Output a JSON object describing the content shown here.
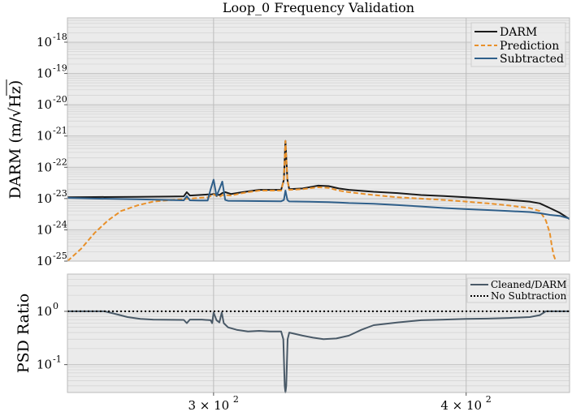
{
  "chart_data": [
    {
      "type": "line",
      "title": "Loop_0 Frequency Validation",
      "xlabel": "",
      "ylabel": "DARM (m/√Hz)",
      "ylabel_prefix": "DARM (m/",
      "ylabel_suffix": "Hz)",
      "yscale": "log",
      "xscale": "log",
      "xlim": [
        254,
        450
      ],
      "ylim": [
        1e-25,
        6e-18
      ],
      "y_ticks": [
        {
          "label": "10",
          "exp": "-18",
          "value": 1e-18
        },
        {
          "label": "10",
          "exp": "-19",
          "value": 1e-19
        },
        {
          "label": "10",
          "exp": "-20",
          "value": 1e-20
        },
        {
          "label": "10",
          "exp": "-21",
          "value": 1e-21
        },
        {
          "label": "10",
          "exp": "-22",
          "value": 1e-22
        },
        {
          "label": "10",
          "exp": "-23",
          "value": 1e-23
        },
        {
          "label": "10",
          "exp": "-24",
          "value": 1e-24
        },
        {
          "label": "10",
          "exp": "-25",
          "value": 1e-25
        }
      ],
      "grid": true,
      "legend_position": "top-right",
      "series": [
        {
          "name": "DARM",
          "color": "#1a1a1a",
          "style": "solid",
          "x": [
            254,
            262,
            275,
            285,
            290,
            291,
            292,
            295,
            298,
            299,
            300,
            301,
            302,
            303,
            304,
            306,
            310,
            316,
            324,
            325,
            325.6,
            326.3,
            327,
            332,
            338,
            342,
            346,
            350,
            360,
            370,
            380,
            390,
            400,
            410,
            420,
            430,
            435,
            440,
            445,
            450
          ],
          "y": [
            1.1e-23,
            1.12e-23,
            1.14e-23,
            1.16e-23,
            1.18e-23,
            1.6e-23,
            1.25e-23,
            1.3e-23,
            1.35e-23,
            1.35e-23,
            1.4e-23,
            1.35e-23,
            1.3e-23,
            1.5e-23,
            1.6e-23,
            1.4e-23,
            1.6e-23,
            1.9e-23,
            1.9e-23,
            4e-23,
            7e-22,
            4e-23,
            2e-23,
            2.1e-23,
            2.6e-23,
            2.5e-23,
            2.1e-23,
            1.9e-23,
            1.65e-23,
            1.5e-23,
            1.3e-23,
            1.2e-23,
            1.1e-23,
            1e-23,
            9e-24,
            8e-24,
            7e-24,
            5e-24,
            3.5e-24,
            2.2e-24
          ]
        },
        {
          "name": "Prediction",
          "color": "#e8902a",
          "style": "dashed",
          "x": [
            254,
            258,
            262,
            266,
            270,
            275,
            280,
            286,
            292,
            298,
            299,
            300,
            301,
            302,
            303,
            304,
            306,
            310,
            316,
            324,
            325,
            325.6,
            326.3,
            327,
            332,
            338,
            342,
            346,
            350,
            360,
            370,
            380,
            390,
            400,
            410,
            420,
            430,
            435,
            438,
            440,
            441,
            442,
            443
          ],
          "y": [
            1e-25,
            2.5e-25,
            8e-25,
            2e-24,
            4e-24,
            6e-24,
            8e-24,
            9e-24,
            1e-23,
            1.1e-23,
            1.2e-23,
            1.35e-23,
            1.2e-23,
            1.1e-23,
            1.3e-23,
            1.3e-23,
            1.25e-23,
            1.5e-23,
            1.8e-23,
            1.8e-23,
            4e-23,
            7e-22,
            4e-23,
            1.9e-23,
            2e-23,
            2.3e-23,
            2.2e-23,
            1.8e-23,
            1.6e-23,
            1.3e-23,
            1.1e-23,
            1e-23,
            9e-24,
            8e-24,
            7e-24,
            6e-24,
            5e-24,
            4e-24,
            2e-24,
            8e-25,
            3e-25,
            1.5e-25,
            1e-25
          ]
        },
        {
          "name": "Subtracted",
          "color": "#2f5f8a",
          "style": "solid",
          "x": [
            254,
            262,
            275,
            285,
            290,
            291,
            292,
            295,
            298,
            299,
            300,
            301,
            302,
            303,
            304,
            305,
            310,
            316,
            324,
            325,
            325.6,
            326.3,
            327,
            332,
            338,
            342,
            346,
            350,
            360,
            370,
            380,
            390,
            400,
            410,
            420,
            430,
            435,
            440,
            445,
            450
          ],
          "y": [
            1.05e-23,
            1e-23,
            9.5e-24,
            9e-24,
            8.8e-24,
            1.2e-23,
            8.8e-24,
            8.7e-24,
            8.7e-24,
            2e-23,
            4e-23,
            1.2e-23,
            2e-23,
            3.5e-23,
            9e-24,
            8.5e-24,
            8.4e-24,
            8.3e-24,
            8.2e-24,
            9e-24,
            1.8e-23,
            9e-24,
            8.1e-24,
            8e-24,
            7.8e-24,
            7.7e-24,
            7.5e-24,
            7.2e-24,
            6.8e-24,
            6.2e-24,
            5.6e-24,
            5e-24,
            4.6e-24,
            4.3e-24,
            4e-24,
            3.7e-24,
            3.4e-24,
            3e-24,
            2.8e-24,
            2.3e-24
          ]
        }
      ]
    },
    {
      "type": "line",
      "title": "",
      "xlabel": "",
      "ylabel": "PSD Ratio",
      "yscale": "log",
      "xscale": "log",
      "xlim": [
        254,
        450
      ],
      "ylim": [
        0.03,
        5
      ],
      "x_ticks": [
        {
          "label": "3 × 10",
          "exp": "2",
          "value": 300
        },
        {
          "label": "4 × 10",
          "exp": "2",
          "value": 400
        }
      ],
      "y_ticks": [
        {
          "label": "10",
          "exp": "0",
          "value": 1
        },
        {
          "label": "10",
          "exp": "-1",
          "value": 0.1
        }
      ],
      "grid": true,
      "legend_position": "top-right",
      "series": [
        {
          "name": "Cleaned/DARM",
          "color": "#4a5a68",
          "style": "solid",
          "x": [
            254,
            265,
            268,
            272,
            276,
            280,
            290,
            291,
            292,
            296,
            299,
            299.5,
            300,
            301,
            302,
            302.8,
            303.5,
            305,
            308,
            312,
            316,
            320,
            324,
            324.8,
            325.3,
            325.6,
            325.9,
            326.4,
            327,
            332,
            336,
            340,
            345,
            350,
            355,
            360,
            370,
            380,
            390,
            400,
            410,
            420,
            430,
            435,
            438,
            442,
            450
          ],
          "y": [
            1.0,
            1.0,
            0.9,
            0.78,
            0.72,
            0.7,
            0.69,
            0.6,
            0.7,
            0.7,
            0.68,
            0.6,
            0.95,
            0.68,
            0.62,
            0.95,
            0.6,
            0.5,
            0.45,
            0.42,
            0.43,
            0.42,
            0.42,
            0.3,
            0.04,
            0.03,
            0.04,
            0.3,
            0.4,
            0.35,
            0.32,
            0.3,
            0.31,
            0.35,
            0.45,
            0.55,
            0.62,
            0.68,
            0.7,
            0.72,
            0.73,
            0.75,
            0.78,
            0.85,
            1.0,
            1.0,
            1.0
          ]
        },
        {
          "name": "No Subtraction",
          "color": "#000000",
          "style": "dotted",
          "x": [
            254,
            450
          ],
          "y": [
            1.0,
            1.0
          ]
        }
      ]
    }
  ]
}
